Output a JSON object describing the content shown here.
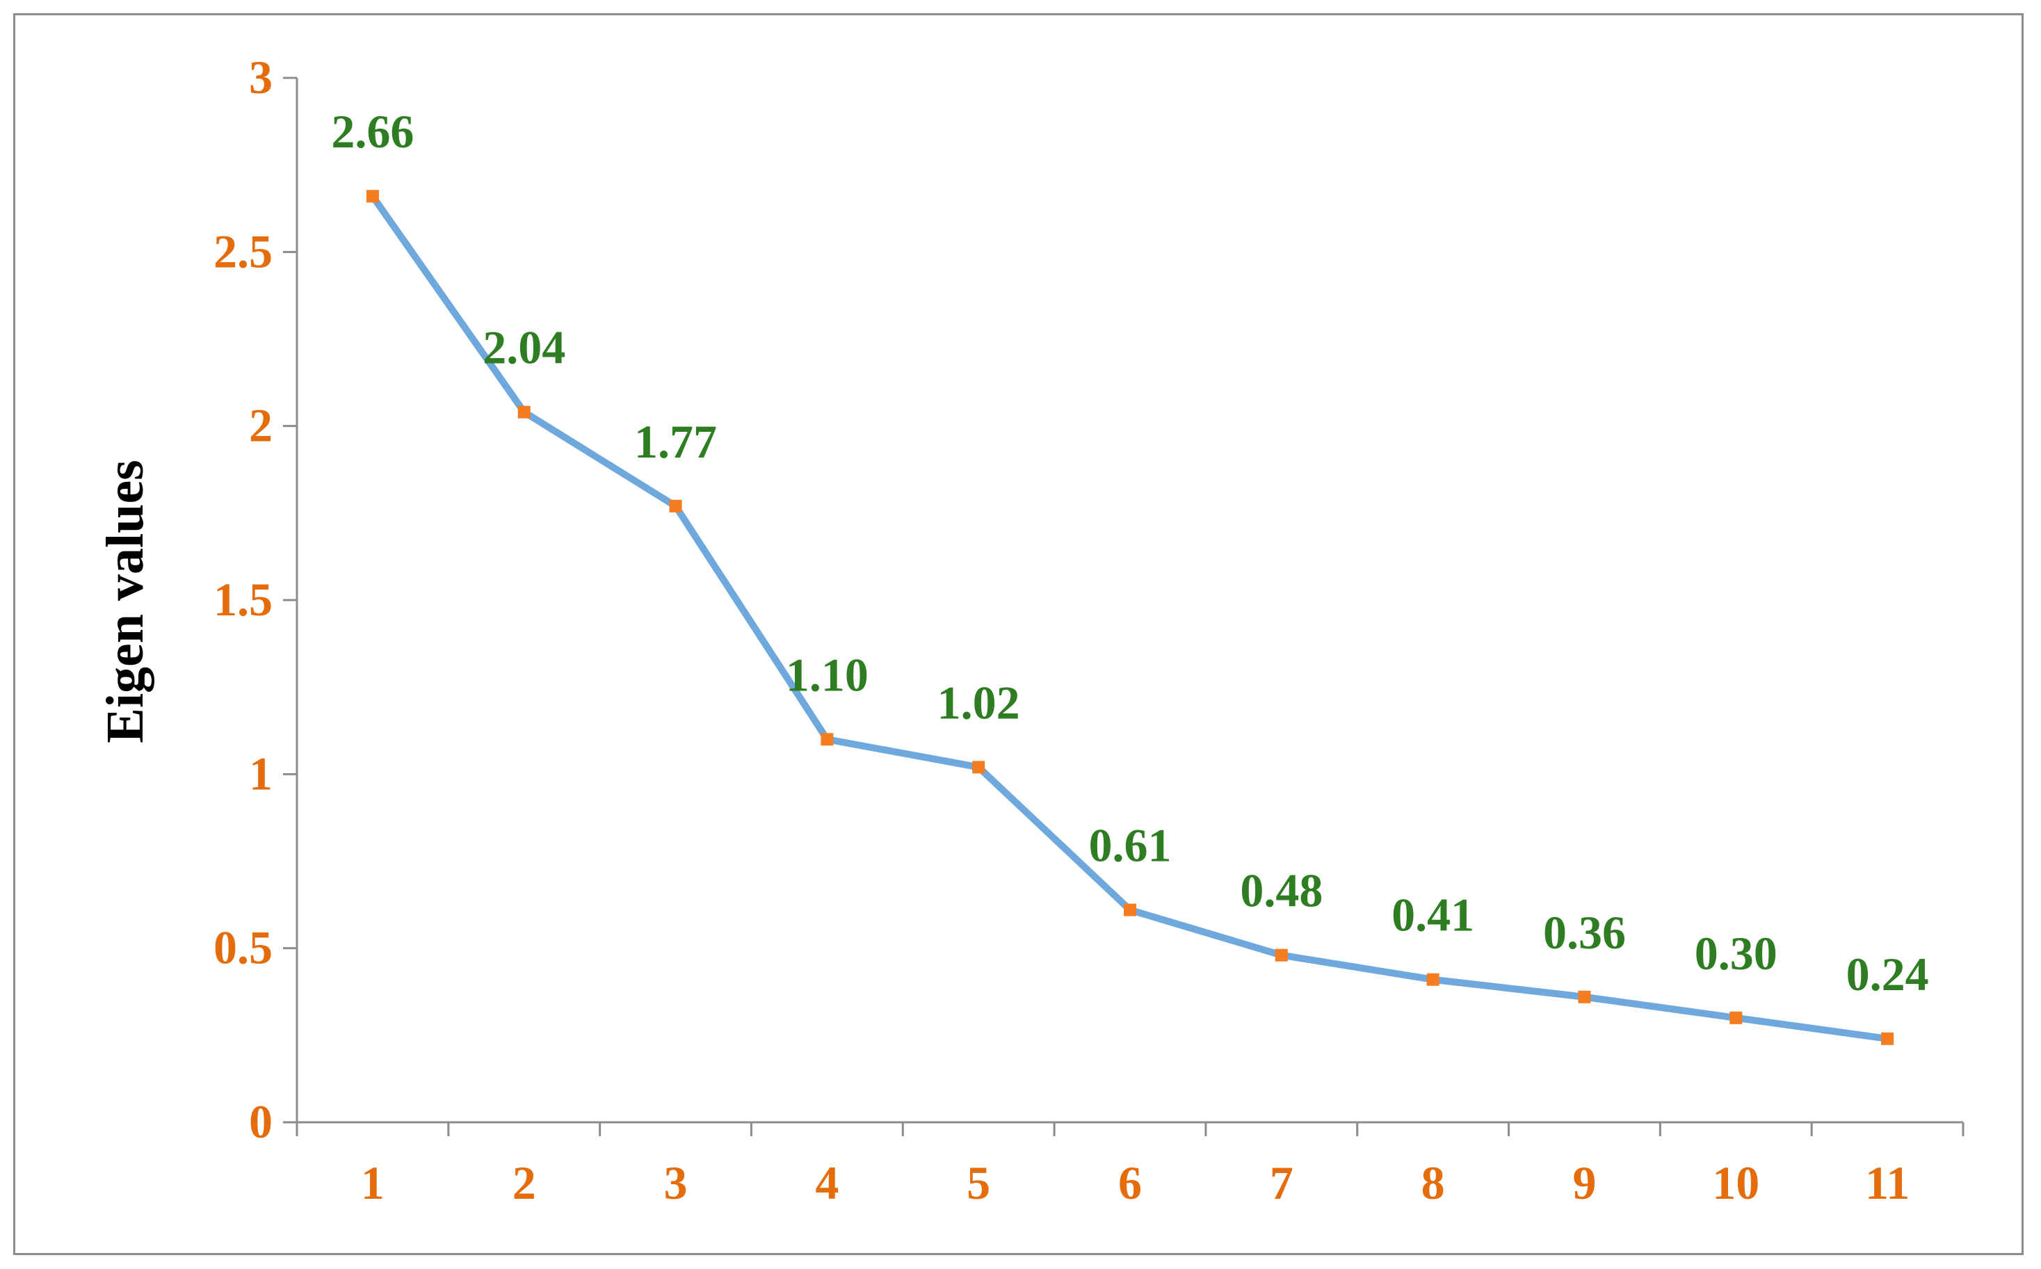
{
  "chart_data": {
    "type": "line",
    "title": "",
    "xlabel": "",
    "ylabel": "Eigen values",
    "x": [
      1,
      2,
      3,
      4,
      5,
      6,
      7,
      8,
      9,
      10,
      11
    ],
    "categories": [
      "1",
      "2",
      "3",
      "4",
      "5",
      "6",
      "7",
      "8",
      "9",
      "10",
      "11"
    ],
    "series": [
      {
        "values": [
          2.66,
          2.04,
          1.77,
          1.1,
          1.02,
          0.61,
          0.48,
          0.41,
          0.36,
          0.3,
          0.24
        ],
        "data_labels": [
          "2.66",
          "2.04",
          "1.77",
          "1.10",
          "1.02",
          "0.61",
          "0.48",
          "0.41",
          "0.36",
          "0.30",
          "0.24"
        ]
      }
    ],
    "ylim": [
      0,
      3
    ],
    "yticks": [
      "0",
      "0.5",
      "1",
      "1.5",
      "2",
      "2.5",
      "3"
    ],
    "grid": false,
    "legend": "none",
    "colors": {
      "line": "#6fa8dc",
      "marker": "#f57c1f",
      "tick_labels": "#e46c0a",
      "data_labels": "#2e7d22",
      "axis": "#8c8c8c"
    }
  }
}
